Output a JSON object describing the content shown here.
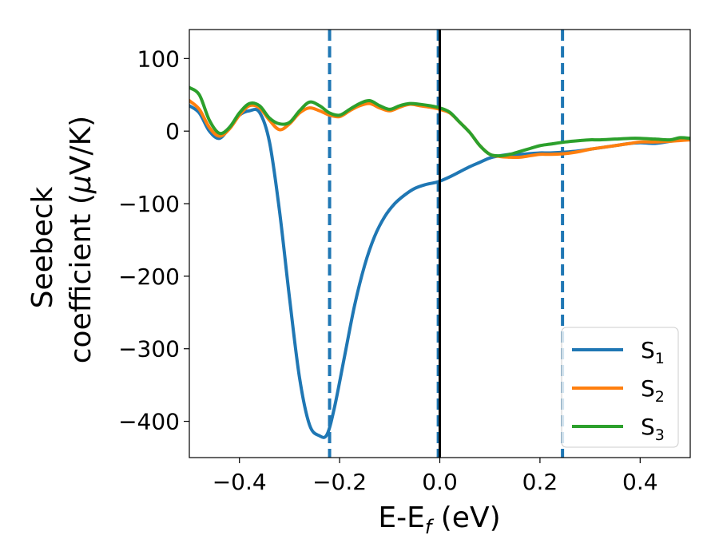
{
  "chart_data": {
    "type": "line",
    "xlabel": {
      "main": "E-E",
      "sub": "f",
      "unit": " (eV)"
    },
    "ylabel": {
      "line1": "Seebeck",
      "line2_pre": "coefficient  (",
      "mu": "μ",
      "line2_post": "V/K)"
    },
    "xlim": [
      -0.5,
      0.5
    ],
    "ylim": [
      -450,
      140
    ],
    "xticks": [
      {
        "value": -0.4,
        "label": "−0.4"
      },
      {
        "value": -0.2,
        "label": "−0.2"
      },
      {
        "value": 0.0,
        "label": "0.0"
      },
      {
        "value": 0.2,
        "label": "0.2"
      },
      {
        "value": 0.4,
        "label": "0.4"
      }
    ],
    "yticks": [
      {
        "value": 100,
        "label": "100"
      },
      {
        "value": 0,
        "label": "0"
      },
      {
        "value": -100,
        "label": "−100"
      },
      {
        "value": -200,
        "label": "−200"
      },
      {
        "value": -300,
        "label": "−300"
      },
      {
        "value": -400,
        "label": "−400"
      }
    ],
    "grid": false,
    "legend_position": "bottom-right",
    "vlines": [
      {
        "x": -0.22,
        "style": "dashed",
        "color": "#1f77b4"
      },
      {
        "x": -0.003,
        "style": "dashed",
        "color": "#1f77b4"
      },
      {
        "x": 0.0,
        "style": "solid",
        "color": "#000000"
      },
      {
        "x": 0.245,
        "style": "dashed",
        "color": "#1f77b4"
      }
    ],
    "series": [
      {
        "name": "S",
        "sub": "1",
        "color": "#1f77b4",
        "x": [
          -0.5,
          -0.48,
          -0.46,
          -0.44,
          -0.42,
          -0.4,
          -0.38,
          -0.36,
          -0.34,
          -0.32,
          -0.3,
          -0.28,
          -0.26,
          -0.24,
          -0.225,
          -0.21,
          -0.19,
          -0.17,
          -0.15,
          -0.13,
          -0.11,
          -0.09,
          -0.07,
          -0.05,
          -0.03,
          -0.01,
          0.0,
          0.02,
          0.04,
          0.06,
          0.08,
          0.1,
          0.12,
          0.14,
          0.16,
          0.18,
          0.2,
          0.22,
          0.25,
          0.28,
          0.3,
          0.32,
          0.35,
          0.38,
          0.4,
          0.43,
          0.46,
          0.48,
          0.5
        ],
        "y": [
          35,
          25,
          0,
          -10,
          5,
          22,
          28,
          26,
          -15,
          -110,
          -230,
          -340,
          -405,
          -420,
          -418,
          -380,
          -310,
          -240,
          -185,
          -145,
          -118,
          -100,
          -88,
          -79,
          -74,
          -71,
          -69,
          -63,
          -56,
          -49,
          -43,
          -37,
          -34,
          -32,
          -32,
          -31,
          -30,
          -30,
          -29,
          -27,
          -25,
          -23,
          -20,
          -17,
          -16,
          -17,
          -14,
          -12,
          -12
        ]
      },
      {
        "name": "S",
        "sub": "2",
        "color": "#ff7f0e",
        "x": [
          -0.5,
          -0.48,
          -0.46,
          -0.44,
          -0.42,
          -0.4,
          -0.38,
          -0.36,
          -0.34,
          -0.32,
          -0.3,
          -0.28,
          -0.26,
          -0.24,
          -0.22,
          -0.2,
          -0.18,
          -0.16,
          -0.14,
          -0.12,
          -0.1,
          -0.08,
          -0.06,
          -0.04,
          -0.02,
          0.0,
          0.02,
          0.04,
          0.06,
          0.08,
          0.1,
          0.12,
          0.14,
          0.16,
          0.18,
          0.2,
          0.22,
          0.25,
          0.28,
          0.3,
          0.32,
          0.35,
          0.38,
          0.4,
          0.43,
          0.46,
          0.48,
          0.5
        ],
        "y": [
          42,
          30,
          5,
          -7,
          3,
          22,
          35,
          32,
          15,
          2,
          10,
          25,
          32,
          28,
          22,
          20,
          28,
          35,
          38,
          32,
          28,
          33,
          37,
          35,
          33,
          30,
          25,
          12,
          -2,
          -20,
          -32,
          -35,
          -36,
          -36,
          -34,
          -32,
          -32,
          -31,
          -28,
          -25,
          -23,
          -20,
          -17,
          -15,
          -15,
          -14,
          -13,
          -12
        ]
      },
      {
        "name": "S",
        "sub": "3",
        "color": "#2ca02c",
        "x": [
          -0.5,
          -0.48,
          -0.46,
          -0.44,
          -0.42,
          -0.4,
          -0.38,
          -0.36,
          -0.34,
          -0.32,
          -0.3,
          -0.28,
          -0.26,
          -0.24,
          -0.22,
          -0.2,
          -0.18,
          -0.16,
          -0.14,
          -0.12,
          -0.1,
          -0.08,
          -0.06,
          -0.04,
          -0.02,
          0.0,
          0.02,
          0.04,
          0.06,
          0.08,
          0.1,
          0.12,
          0.14,
          0.16,
          0.18,
          0.2,
          0.22,
          0.25,
          0.28,
          0.3,
          0.32,
          0.35,
          0.38,
          0.4,
          0.43,
          0.46,
          0.48,
          0.5
        ],
        "y": [
          60,
          50,
          15,
          -3,
          5,
          25,
          38,
          35,
          18,
          10,
          12,
          28,
          40,
          35,
          25,
          22,
          30,
          38,
          42,
          35,
          30,
          35,
          38,
          37,
          35,
          32,
          26,
          12,
          -2,
          -20,
          -32,
          -34,
          -32,
          -28,
          -24,
          -20,
          -18,
          -15,
          -13,
          -12,
          -12,
          -11,
          -10,
          -10,
          -11,
          -12,
          -9,
          -10
        ]
      }
    ]
  }
}
